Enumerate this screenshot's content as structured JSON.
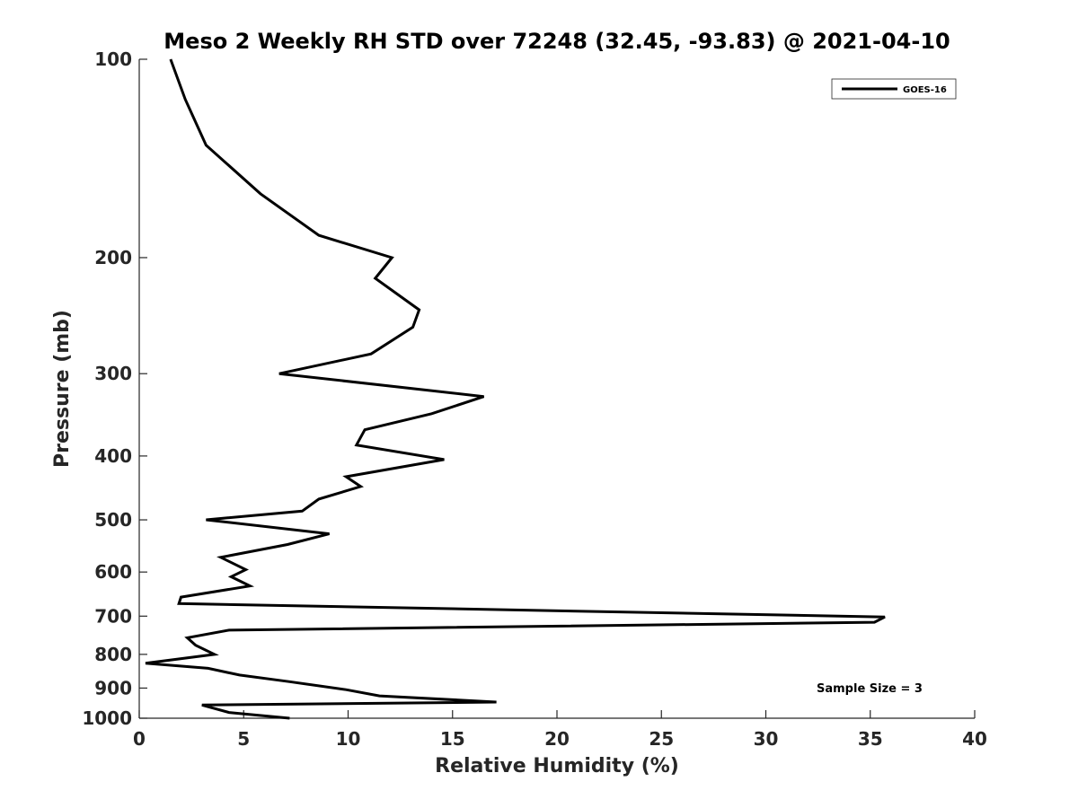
{
  "chart_data": {
    "type": "line",
    "title": "Meso 2 Weekly RH STD over 72248 (32.45, -93.83) @ 2021-04-10",
    "xlabel": "Relative Humidity (%)",
    "ylabel": "Pressure (mb)",
    "xlim": [
      0,
      40
    ],
    "ylim": [
      100,
      1000
    ],
    "y_scale": "log",
    "y_reversed": true,
    "x_ticks": [
      "0",
      "5",
      "10",
      "15",
      "20",
      "25",
      "30",
      "35",
      "40"
    ],
    "y_ticks": [
      "100",
      "200",
      "300",
      "400",
      "500",
      "600",
      "700",
      "800",
      "900",
      "1000"
    ],
    "grid": false,
    "legend_position": "top-right",
    "annotation": "Sample Size = 3",
    "series": [
      {
        "name": "GOES-16",
        "color": "#000000",
        "points": [
          [
            1.5,
            100
          ],
          [
            2.2,
            115
          ],
          [
            3.2,
            135
          ],
          [
            5.8,
            160
          ],
          [
            8.6,
            185
          ],
          [
            12.1,
            200
          ],
          [
            11.3,
            215
          ],
          [
            13.4,
            240
          ],
          [
            13.1,
            255
          ],
          [
            11.1,
            280
          ],
          [
            6.7,
            300
          ],
          [
            16.5,
            325
          ],
          [
            14.0,
            345
          ],
          [
            10.8,
            365
          ],
          [
            10.4,
            385
          ],
          [
            14.6,
            405
          ],
          [
            9.9,
            430
          ],
          [
            10.6,
            445
          ],
          [
            8.6,
            465
          ],
          [
            7.8,
            485
          ],
          [
            3.2,
            500
          ],
          [
            9.1,
            525
          ],
          [
            7.1,
            545
          ],
          [
            3.9,
            570
          ],
          [
            5.1,
            595
          ],
          [
            4.4,
            610
          ],
          [
            5.3,
            630
          ],
          [
            2.0,
            655
          ],
          [
            1.9,
            670
          ],
          [
            35.7,
            702
          ],
          [
            35.2,
            715
          ],
          [
            4.3,
            735
          ],
          [
            2.3,
            755
          ],
          [
            2.7,
            775
          ],
          [
            3.6,
            800
          ],
          [
            0.3,
            825
          ],
          [
            3.3,
            840
          ],
          [
            4.8,
            860
          ],
          [
            7.2,
            880
          ],
          [
            9.9,
            905
          ],
          [
            11.5,
            925
          ],
          [
            17.1,
            945
          ],
          [
            3.0,
            955
          ],
          [
            4.3,
            980
          ],
          [
            7.2,
            1000
          ]
        ]
      }
    ]
  }
}
